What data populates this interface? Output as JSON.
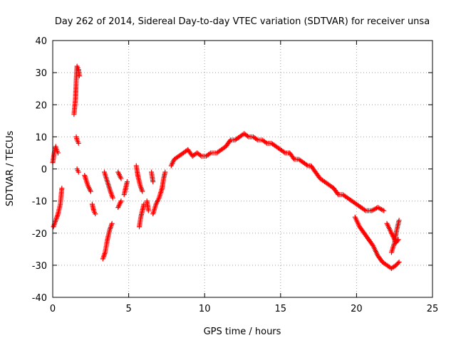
{
  "chart_data": {
    "type": "scatter",
    "title": "Day 262 of 2014, Sidereal Day-to-day VTEC variation (SDTVAR) for receiver unsa",
    "xlabel": "GPS time / hours",
    "ylabel": "SDTVAR / TECUs",
    "xlim": [
      0,
      25
    ],
    "ylim": [
      -40,
      40
    ],
    "xticks": [
      0,
      5,
      10,
      15,
      20,
      25
    ],
    "yticks": [
      -40,
      -30,
      -20,
      -10,
      0,
      10,
      20,
      30,
      40
    ],
    "xtick_labels": [
      "0",
      "5",
      "10",
      "15",
      "20",
      "25"
    ],
    "ytick_labels": [
      "-40",
      "-30",
      "-20",
      "-10",
      "0",
      "10",
      "20",
      "30",
      "40"
    ],
    "grid": true,
    "marker": "+",
    "color": "#ff0000",
    "series_segments": [
      [
        [
          0.0,
          2
        ],
        [
          0.1,
          5
        ],
        [
          0.2,
          7
        ],
        [
          0.25,
          6
        ],
        [
          0.35,
          5
        ]
      ],
      [
        [
          0.05,
          -18
        ],
        [
          0.2,
          -16
        ],
        [
          0.35,
          -14
        ],
        [
          0.5,
          -11
        ],
        [
          0.6,
          -6
        ]
      ],
      [
        [
          1.4,
          17
        ],
        [
          1.5,
          22
        ],
        [
          1.55,
          28
        ],
        [
          1.6,
          32
        ],
        [
          1.7,
          31
        ],
        [
          1.75,
          29
        ]
      ],
      [
        [
          1.55,
          10
        ],
        [
          1.6,
          9
        ],
        [
          1.7,
          8
        ]
      ],
      [
        [
          1.6,
          0
        ],
        [
          1.7,
          -1
        ]
      ],
      [
        [
          2.1,
          -2
        ],
        [
          2.3,
          -5
        ],
        [
          2.5,
          -7
        ]
      ],
      [
        [
          2.6,
          -11
        ],
        [
          2.7,
          -13
        ],
        [
          2.8,
          -14
        ]
      ],
      [
        [
          3.3,
          -28
        ],
        [
          3.45,
          -26
        ],
        [
          3.6,
          -22
        ],
        [
          3.75,
          -19
        ],
        [
          3.9,
          -17
        ]
      ],
      [
        [
          3.4,
          -1
        ],
        [
          3.6,
          -4
        ],
        [
          3.8,
          -7
        ],
        [
          3.95,
          -9
        ]
      ],
      [
        [
          4.3,
          -1
        ],
        [
          4.5,
          -3
        ]
      ],
      [
        [
          4.3,
          -12
        ],
        [
          4.5,
          -10
        ]
      ],
      [
        [
          4.7,
          -8
        ],
        [
          4.8,
          -6
        ],
        [
          4.9,
          -4
        ]
      ],
      [
        [
          5.5,
          1
        ],
        [
          5.6,
          -2
        ],
        [
          5.75,
          -5
        ],
        [
          5.9,
          -7
        ]
      ],
      [
        [
          5.7,
          -18
        ],
        [
          5.8,
          -15
        ],
        [
          5.9,
          -13
        ],
        [
          6.0,
          -11
        ]
      ],
      [
        [
          6.2,
          -10
        ],
        [
          6.3,
          -13
        ]
      ],
      [
        [
          6.5,
          -1
        ],
        [
          6.6,
          -4
        ]
      ],
      [
        [
          6.6,
          -14
        ],
        [
          6.8,
          -11
        ],
        [
          7.0,
          -9
        ],
        [
          7.2,
          -6
        ],
        [
          7.3,
          -3
        ],
        [
          7.4,
          -1
        ]
      ],
      [
        [
          7.8,
          1
        ],
        [
          8.0,
          3
        ],
        [
          8.3,
          4
        ],
        [
          8.6,
          5
        ],
        [
          8.9,
          6
        ],
        [
          9.2,
          4
        ],
        [
          9.5,
          5
        ],
        [
          9.8,
          4
        ],
        [
          10.1,
          4
        ],
        [
          10.4,
          5
        ],
        [
          10.8,
          5
        ],
        [
          11.1,
          6
        ],
        [
          11.4,
          7
        ],
        [
          11.7,
          9
        ],
        [
          12.0,
          9
        ],
        [
          12.3,
          10
        ],
        [
          12.6,
          11
        ],
        [
          12.9,
          10
        ],
        [
          13.2,
          10
        ],
        [
          13.5,
          9
        ],
        [
          13.8,
          9
        ],
        [
          14.1,
          8
        ],
        [
          14.4,
          8
        ],
        [
          14.7,
          7
        ],
        [
          15.0,
          6
        ],
        [
          15.3,
          5
        ],
        [
          15.6,
          5
        ],
        [
          15.9,
          3
        ],
        [
          16.2,
          3
        ],
        [
          16.5,
          2
        ],
        [
          16.8,
          1
        ],
        [
          17.0,
          1
        ],
        [
          17.3,
          -1
        ],
        [
          17.6,
          -3
        ],
        [
          17.9,
          -4
        ],
        [
          18.2,
          -5
        ],
        [
          18.5,
          -6
        ],
        [
          18.8,
          -8
        ],
        [
          19.1,
          -8
        ],
        [
          19.4,
          -9
        ],
        [
          19.7,
          -10
        ],
        [
          20.0,
          -11
        ],
        [
          20.3,
          -12
        ],
        [
          20.6,
          -13
        ],
        [
          21.0,
          -13
        ],
        [
          21.4,
          -12
        ],
        [
          21.8,
          -13
        ]
      ],
      [
        [
          19.9,
          -15
        ],
        [
          20.2,
          -18
        ],
        [
          20.5,
          -20
        ],
        [
          20.8,
          -22
        ],
        [
          21.1,
          -24
        ],
        [
          21.4,
          -27
        ],
        [
          21.7,
          -29
        ],
        [
          22.0,
          -30
        ],
        [
          22.3,
          -31
        ],
        [
          22.6,
          -30
        ],
        [
          22.8,
          -29
        ]
      ],
      [
        [
          22.0,
          -17
        ],
        [
          22.2,
          -19
        ],
        [
          22.4,
          -21
        ],
        [
          22.6,
          -23
        ],
        [
          22.75,
          -22
        ]
      ],
      [
        [
          22.3,
          -26
        ],
        [
          22.5,
          -23
        ],
        [
          22.65,
          -19
        ],
        [
          22.8,
          -16
        ]
      ]
    ]
  }
}
